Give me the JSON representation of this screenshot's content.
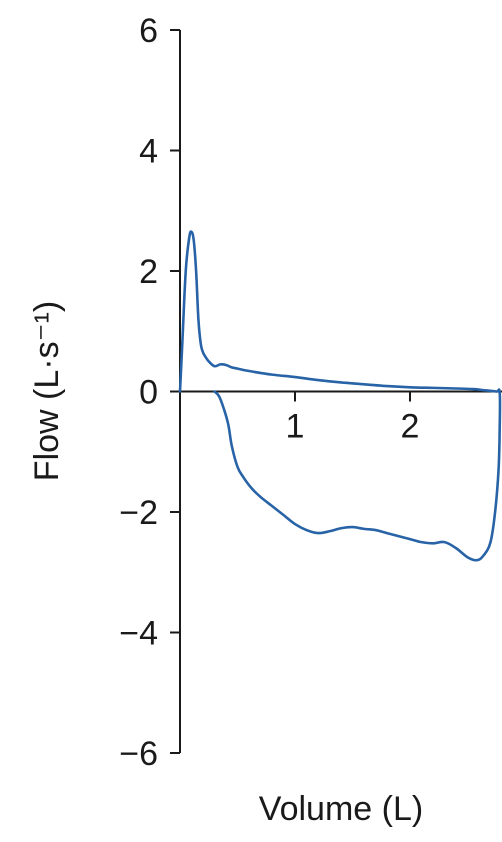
{
  "chart_data": {
    "type": "line",
    "xlabel": "Volume (L)",
    "ylabel": "Flow (L·s⁻¹)",
    "xlim": [
      0,
      2.8
    ],
    "ylim": [
      -6,
      6
    ],
    "x_ticks": [
      1,
      2
    ],
    "x_tick_labels": [
      "1",
      "2"
    ],
    "y_ticks": [
      6,
      4,
      2,
      0,
      -2,
      -4,
      -6
    ],
    "y_tick_labels": [
      "6",
      "4",
      "2",
      "0",
      "−2",
      "−4",
      "−6"
    ],
    "grid": false,
    "color": "#2763a6",
    "series": [
      {
        "x": [
          0.0,
          0.02,
          0.05,
          0.08,
          0.1,
          0.12,
          0.14,
          0.16,
          0.18,
          0.2,
          0.22,
          0.25,
          0.3,
          0.35,
          0.4,
          0.45,
          0.5,
          0.6,
          0.8,
          1.0,
          1.2,
          1.4,
          1.6,
          1.8,
          2.0,
          2.2,
          2.4,
          2.55,
          2.65,
          2.75,
          2.78,
          2.78,
          2.77,
          2.74,
          2.7,
          2.64,
          2.58,
          2.5,
          2.4,
          2.3,
          2.2,
          2.1,
          2.0,
          1.9,
          1.8,
          1.7,
          1.6,
          1.5,
          1.4,
          1.3,
          1.2,
          1.1,
          1.0,
          0.9,
          0.8,
          0.7,
          0.62,
          0.55,
          0.5,
          0.45,
          0.42,
          0.38,
          0.34,
          0.3
        ],
        "y": [
          0.0,
          0.8,
          2.0,
          2.55,
          2.65,
          2.5,
          2.0,
          1.2,
          0.8,
          0.65,
          0.58,
          0.5,
          0.42,
          0.45,
          0.44,
          0.4,
          0.38,
          0.34,
          0.28,
          0.24,
          0.19,
          0.15,
          0.12,
          0.09,
          0.07,
          0.06,
          0.05,
          0.04,
          0.02,
          0.0,
          -0.02,
          -0.6,
          -1.3,
          -2.0,
          -2.5,
          -2.72,
          -2.8,
          -2.75,
          -2.6,
          -2.5,
          -2.52,
          -2.5,
          -2.45,
          -2.4,
          -2.35,
          -2.3,
          -2.28,
          -2.25,
          -2.27,
          -2.32,
          -2.35,
          -2.3,
          -2.2,
          -2.05,
          -1.9,
          -1.75,
          -1.6,
          -1.42,
          -1.25,
          -0.9,
          -0.55,
          -0.28,
          -0.08,
          0.0
        ]
      }
    ]
  }
}
